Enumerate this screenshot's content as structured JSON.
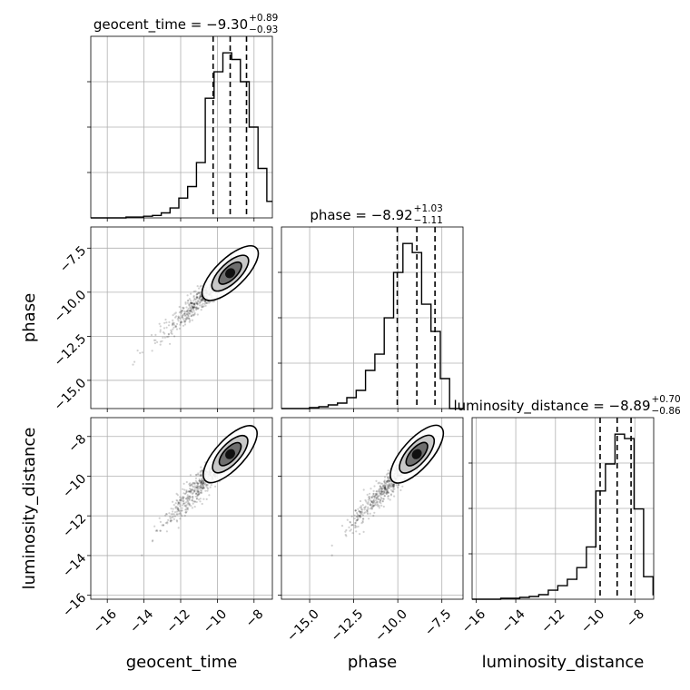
{
  "chart_data": {
    "type": "corner",
    "parameters": [
      "geocent_time",
      "phase",
      "luminosity_distance"
    ],
    "panel_titles": [
      {
        "param": "geocent_time",
        "prefix": "geocent_time = ",
        "median": "−9.30",
        "plus": "+0.89",
        "minus": "−0.93"
      },
      {
        "param": "phase",
        "prefix": "phase = ",
        "median": "−8.92",
        "plus": "+1.03",
        "minus": "−1.11"
      },
      {
        "param": "luminosity_distance",
        "prefix": "luminosity_distance = ",
        "median": "−8.89",
        "plus": "+0.70",
        "minus": "−0.86"
      }
    ],
    "axes": {
      "geocent_time": {
        "range": [
          -16.9,
          -7.0
        ],
        "ticks": [
          -16,
          -14,
          -12,
          -10,
          -8
        ],
        "tick_labels": [
          "−16",
          "−14",
          "−12",
          "−10",
          "−8"
        ]
      },
      "phase": {
        "range": [
          -16.6,
          -6.3
        ],
        "ticks": [
          -15.0,
          -12.5,
          -10.0,
          -7.5
        ],
        "tick_labels": [
          "−15.0",
          "−12.5",
          "−10.0",
          "−7.5"
        ]
      },
      "luminosity_distance": {
        "range": [
          -16.2,
          -7.05
        ],
        "ticks": [
          -16,
          -14,
          -12,
          -10,
          -8
        ],
        "tick_labels": [
          "−16",
          "−14",
          "−12",
          "−10",
          "−8"
        ]
      }
    },
    "diagonal_histograms": [
      {
        "param": "geocent_time",
        "bin_edges": [
          -16.9,
          -16.42,
          -15.94,
          -15.46,
          -14.98,
          -14.5,
          -14.02,
          -13.54,
          -13.06,
          -12.58,
          -12.1,
          -11.62,
          -11.14,
          -10.66,
          -10.18,
          -9.7,
          -9.22,
          -8.74,
          -8.26,
          -7.78,
          -7.3,
          -6.82
        ],
        "counts": [
          0,
          0,
          0,
          0,
          1,
          1,
          2,
          3,
          6,
          12,
          24,
          38,
          67,
          145,
          177,
          200,
          192,
          165,
          110,
          60,
          20
        ],
        "quantiles": [
          -10.23,
          -9.3,
          -8.41
        ]
      },
      {
        "param": "phase",
        "bin_edges": [
          -16.6,
          -16.07,
          -15.54,
          -15.01,
          -14.48,
          -13.95,
          -13.42,
          -12.89,
          -12.36,
          -11.83,
          -11.3,
          -10.77,
          -10.24,
          -9.71,
          -9.18,
          -8.65,
          -8.12,
          -7.59,
          -7.06,
          -6.53,
          -6.0
        ],
        "counts": [
          0,
          0,
          0,
          1,
          2,
          4,
          6,
          12,
          20,
          42,
          60,
          100,
          150,
          182,
          172,
          115,
          85,
          33,
          0,
          0
        ],
        "quantiles": [
          -10.03,
          -8.92,
          -7.89
        ]
      },
      {
        "param": "luminosity_distance",
        "bin_edges": [
          -16.2,
          -15.72,
          -15.24,
          -14.76,
          -14.28,
          -13.8,
          -13.32,
          -12.84,
          -12.36,
          -11.88,
          -11.4,
          -10.92,
          -10.44,
          -9.96,
          -9.48,
          -9.0,
          -8.52,
          -8.04,
          -7.56,
          -7.08,
          -6.6
        ],
        "counts": [
          0,
          0,
          0,
          1,
          1,
          2,
          3,
          5,
          10,
          15,
          22,
          35,
          58,
          120,
          150,
          183,
          178,
          100,
          25,
          5
        ],
        "quantiles": [
          -9.75,
          -8.89,
          -8.19
        ]
      }
    ],
    "contour_panels": [
      {
        "x": "geocent_time",
        "y": "phase",
        "center": [
          -9.3,
          -8.92
        ],
        "levels": 4
      },
      {
        "x": "geocent_time",
        "y": "luminosity_distance",
        "center": [
          -9.3,
          -8.89
        ],
        "levels": 4
      },
      {
        "x": "phase",
        "y": "luminosity_distance",
        "center": [
          -8.92,
          -8.89
        ],
        "levels": 4
      }
    ],
    "grid": true,
    "colors": {
      "line": "#000000",
      "grid": "#b0b0b0",
      "points": "#000000"
    }
  }
}
